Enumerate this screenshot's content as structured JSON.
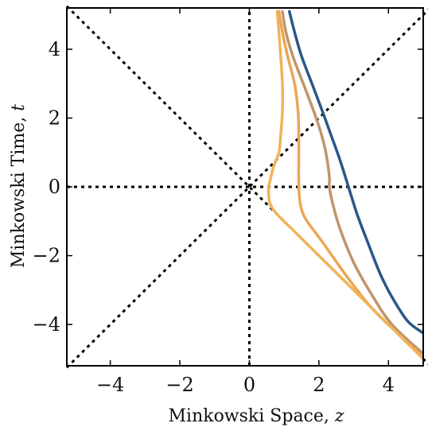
{
  "chart_data": {
    "type": "line",
    "title": "",
    "xlabel": "Minkowski Space, ",
    "xlabel_var": "z",
    "ylabel": "Minkowski Time, ",
    "ylabel_var": "t",
    "xlim": [
      -5.25,
      5
    ],
    "ylim": [
      -5.2,
      5.2
    ],
    "xticks": [
      -4,
      -2,
      0,
      2,
      4
    ],
    "yticks": [
      -4,
      -2,
      0,
      2,
      4
    ],
    "xtick_labels": [
      "−4",
      "−2",
      "0",
      "2",
      "4"
    ],
    "ytick_labels": [
      "−4",
      "−2",
      "0",
      "2",
      "4"
    ],
    "grid": false,
    "reference_lines": [
      {
        "kind": "diagonal",
        "style": "dotted",
        "color": "#000000",
        "points": [
          [
            -5.25,
            -5.25
          ],
          [
            5.2,
            5.2
          ]
        ]
      },
      {
        "kind": "diagonal",
        "style": "dotted",
        "color": "#000000",
        "points": [
          [
            -5.25,
            5.25
          ],
          [
            5.2,
            -5.2
          ]
        ]
      },
      {
        "kind": "horizontal",
        "style": "dotted",
        "color": "#000000",
        "points": [
          [
            -5.25,
            0
          ],
          [
            5,
            0
          ]
        ]
      },
      {
        "kind": "vertical",
        "style": "dotted",
        "color": "#000000",
        "points": [
          [
            0,
            -5.2
          ],
          [
            0,
            5.2
          ]
        ]
      }
    ],
    "series": [
      {
        "color": "#2b5788",
        "points": [
          [
            1.15,
            5.1
          ],
          [
            1.3,
            4.5
          ],
          [
            1.5,
            3.8
          ],
          [
            1.8,
            3.0
          ],
          [
            2.1,
            2.2
          ],
          [
            2.35,
            1.5
          ],
          [
            2.6,
            0.8
          ],
          [
            2.85,
            0.0
          ],
          [
            3.1,
            -0.8
          ],
          [
            3.4,
            -1.6
          ],
          [
            3.75,
            -2.5
          ],
          [
            4.1,
            -3.2
          ],
          [
            4.55,
            -3.9
          ],
          [
            5.0,
            -4.25
          ]
        ]
      },
      {
        "color": "#c0956a",
        "points": [
          [
            0.95,
            5.1
          ],
          [
            1.05,
            4.5
          ],
          [
            1.25,
            3.8
          ],
          [
            1.55,
            3.0
          ],
          [
            1.85,
            2.2
          ],
          [
            2.05,
            1.6
          ],
          [
            2.2,
            1.0
          ],
          [
            2.3,
            0.3
          ],
          [
            2.3,
            0.0
          ],
          [
            2.4,
            -0.5
          ],
          [
            2.6,
            -1.2
          ],
          [
            3.0,
            -2.2
          ],
          [
            3.5,
            -3.1
          ],
          [
            4.1,
            -4.0
          ],
          [
            5.0,
            -4.85
          ]
        ]
      },
      {
        "color": "#eaa654",
        "points": [
          [
            0.85,
            5.1
          ],
          [
            0.95,
            4.5
          ],
          [
            1.1,
            3.8
          ],
          [
            1.3,
            3.0
          ],
          [
            1.4,
            2.2
          ],
          [
            1.42,
            1.5
          ],
          [
            1.42,
            0.8
          ],
          [
            1.42,
            0.2
          ],
          [
            1.45,
            -0.4
          ],
          [
            1.6,
            -0.9
          ],
          [
            2.1,
            -1.6
          ],
          [
            2.8,
            -2.6
          ],
          [
            3.5,
            -3.5
          ],
          [
            4.2,
            -4.2
          ],
          [
            5.0,
            -4.95
          ]
        ]
      },
      {
        "color": "#f0b358",
        "points": [
          [
            0.8,
            5.1
          ],
          [
            0.85,
            4.5
          ],
          [
            0.9,
            3.8
          ],
          [
            0.95,
            3.0
          ],
          [
            0.95,
            2.2
          ],
          [
            0.9,
            1.5
          ],
          [
            0.85,
            1.0
          ],
          [
            0.7,
            0.6
          ],
          [
            0.6,
            0.2
          ],
          [
            0.55,
            -0.1
          ],
          [
            0.6,
            -0.5
          ],
          [
            0.8,
            -0.8
          ],
          [
            1.2,
            -1.2
          ],
          [
            1.7,
            -1.7
          ],
          [
            2.5,
            -2.5
          ],
          [
            3.5,
            -3.5
          ],
          [
            4.3,
            -4.3
          ],
          [
            5.0,
            -5.0
          ]
        ]
      }
    ]
  }
}
